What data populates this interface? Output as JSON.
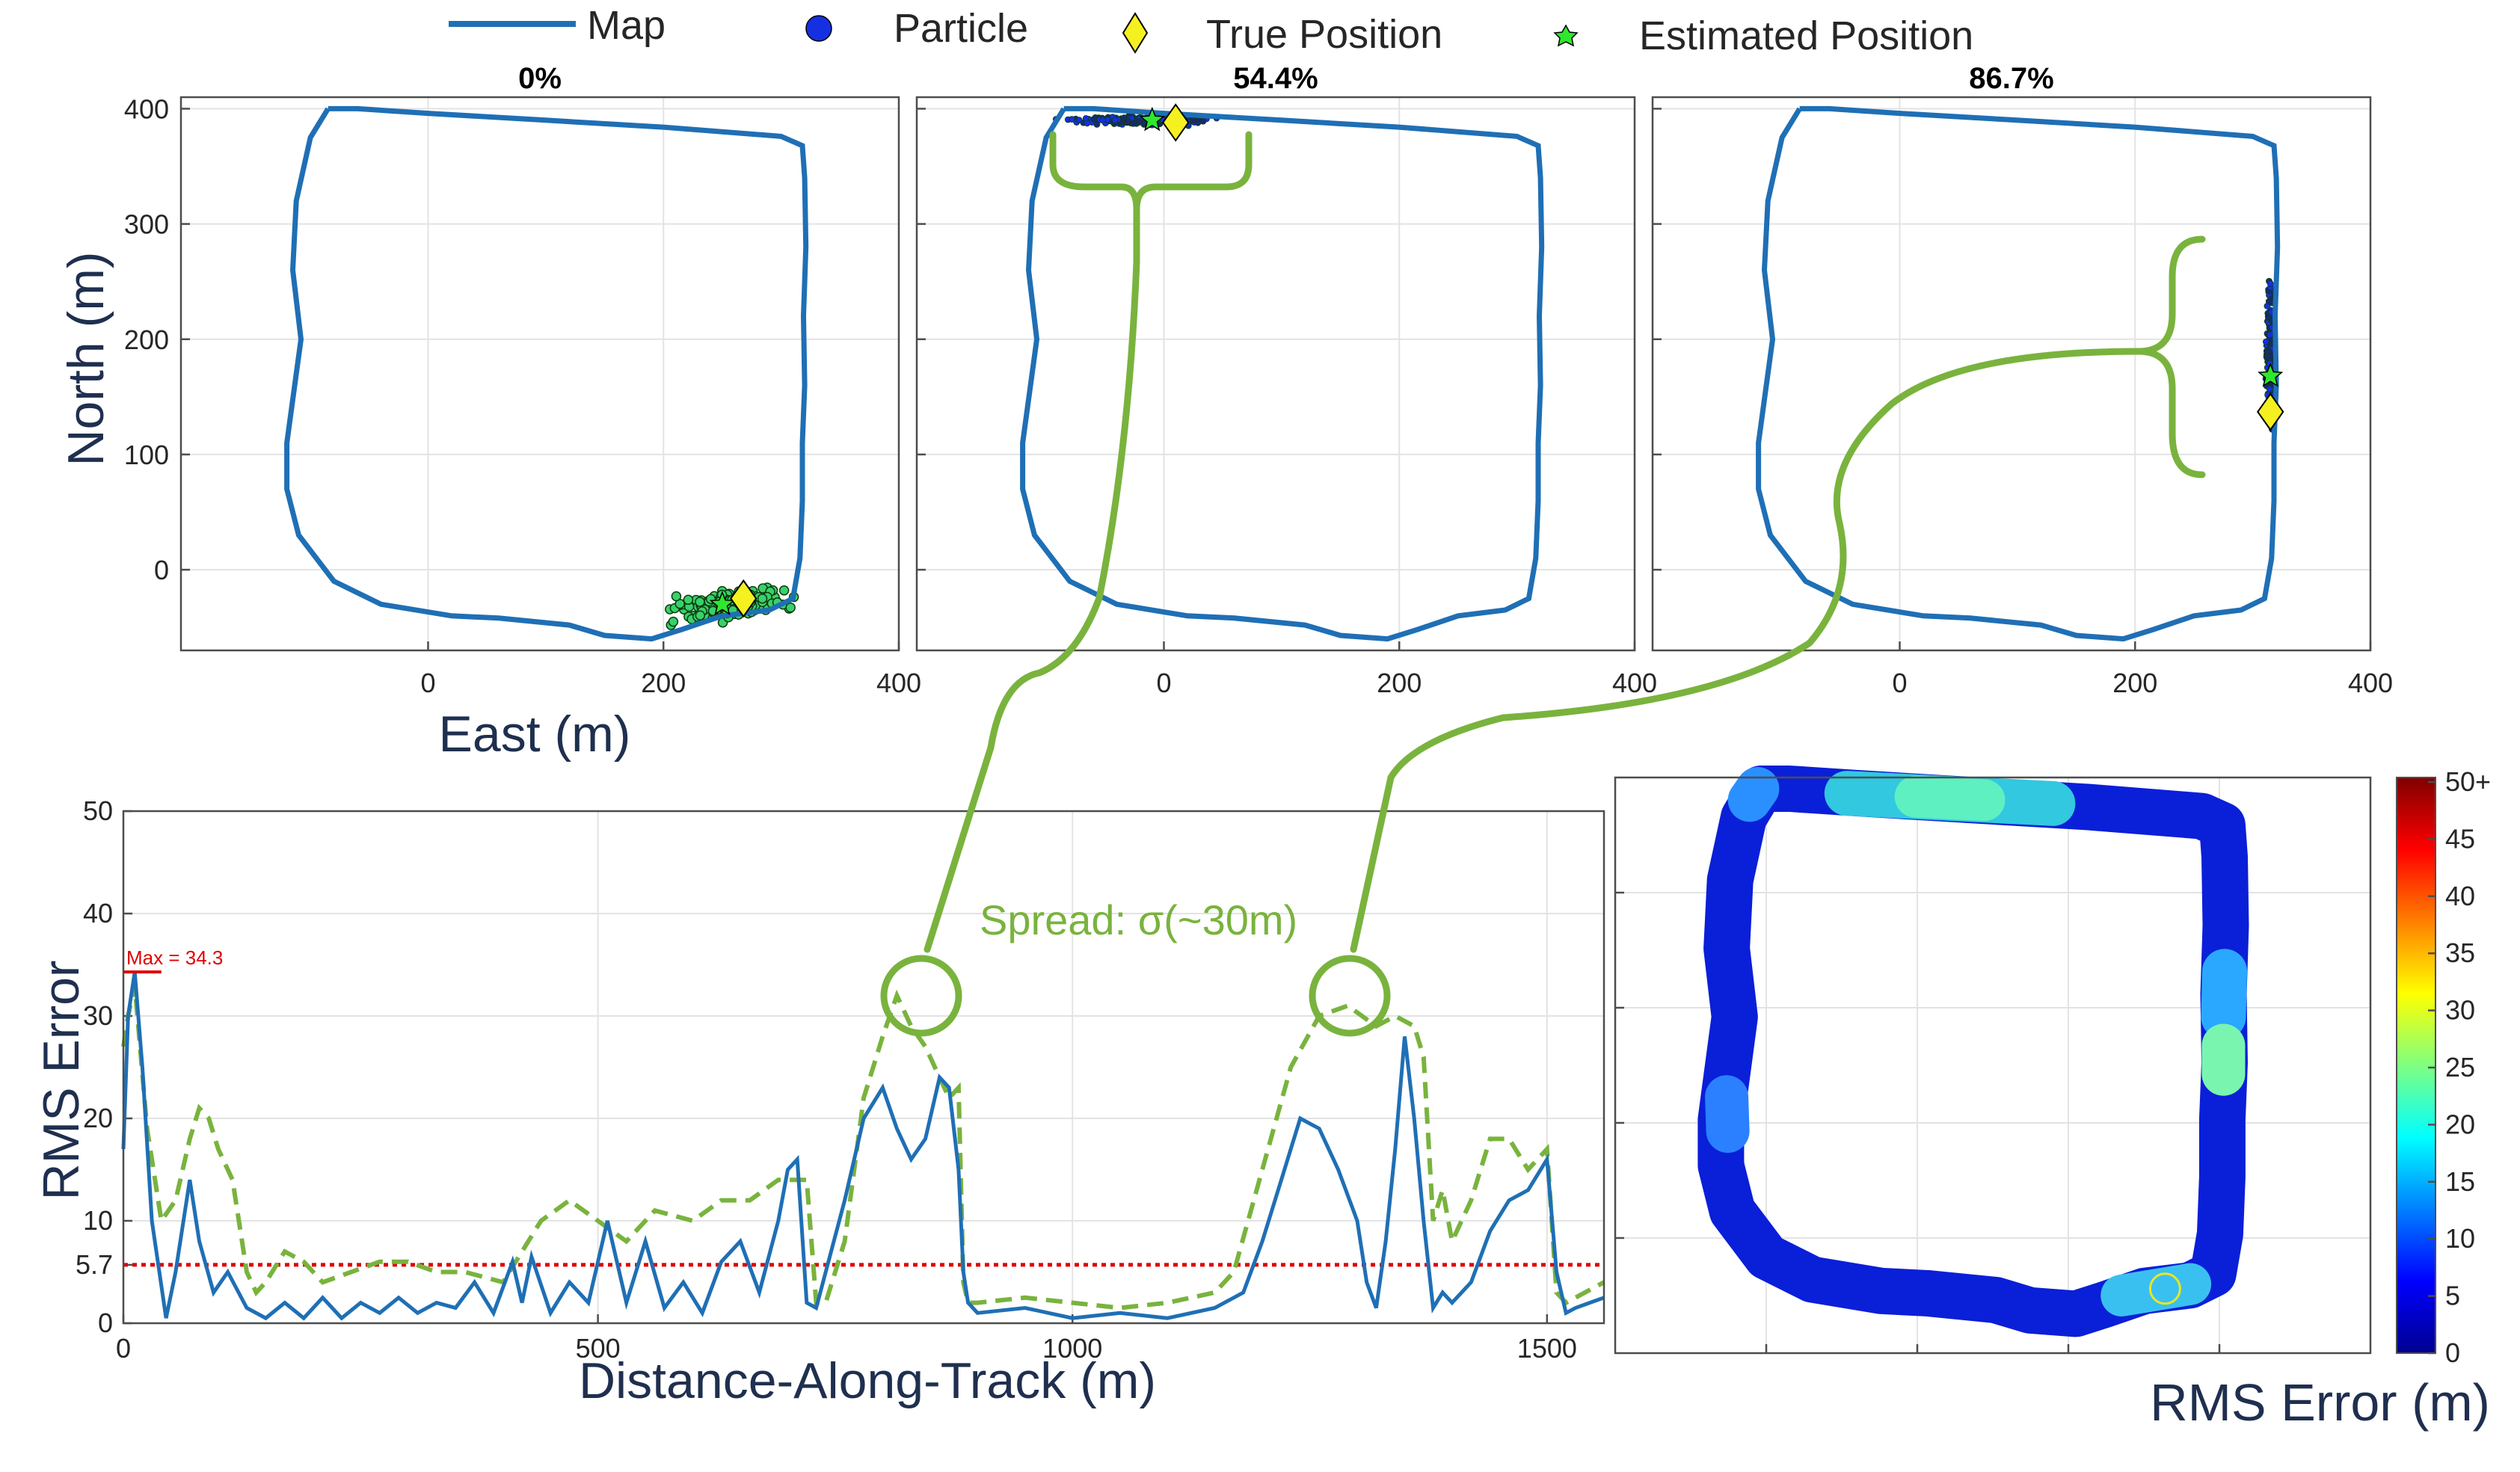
{
  "legend": {
    "items": [
      {
        "label": "Map",
        "marker": "line",
        "color": "#1f6fb5"
      },
      {
        "label": "Particle",
        "marker": "circle",
        "color": "#1530e0"
      },
      {
        "label": "True Position",
        "marker": "diamond",
        "color": "#f5f020"
      },
      {
        "label": "Estimated Position",
        "marker": "star",
        "color": "#2ee82e"
      }
    ]
  },
  "colors": {
    "map": "#1f6fb5",
    "rms_line": "#1f6fb5",
    "spread_line": "#79b33d",
    "threshold": "#e00000",
    "annotation": "#79b33d"
  },
  "annotation": {
    "spread_label": "Spread:  σ(~30m)"
  },
  "colorbar": {
    "label": "RMS Error (m)",
    "ticks": [
      "0",
      "5",
      "10",
      "15",
      "20",
      "25",
      "30",
      "35",
      "40",
      "45",
      "50+"
    ],
    "colormap": "jet"
  },
  "chart_data": [
    {
      "type": "line",
      "title": "0%",
      "xlabel": "East (m)",
      "ylabel": "North (m)",
      "xlim": [
        -210,
        400
      ],
      "ylim": [
        -70,
        410
      ],
      "xticks": [
        "0",
        "200",
        "400"
      ],
      "yticks": [
        "0",
        "100",
        "200",
        "300",
        "400"
      ],
      "grid": true,
      "particles_center": [
        260,
        -30
      ],
      "true_position": [
        268,
        -25
      ],
      "estimated_position": [
        250,
        -30
      ]
    },
    {
      "type": "line",
      "title": "54.4%",
      "xlabel": "",
      "ylabel": "",
      "xlim": [
        -210,
        400
      ],
      "ylim": [
        -70,
        410
      ],
      "xticks": [
        "0",
        "200",
        "400"
      ],
      "grid": true,
      "particles_center": [
        -20,
        390
      ],
      "true_position": [
        10,
        388
      ],
      "estimated_position": [
        -10,
        390
      ]
    },
    {
      "type": "line",
      "title": "86.7%",
      "xlabel": "",
      "ylabel": "",
      "xlim": [
        -210,
        400
      ],
      "ylim": [
        -70,
        410
      ],
      "xticks": [
        "0",
        "200",
        "400"
      ],
      "grid": true,
      "particles_center": [
        315,
        190
      ],
      "true_position": [
        315,
        137
      ],
      "estimated_position": [
        315,
        168
      ]
    },
    {
      "type": "line",
      "title": "",
      "xlabel": "Distance-Along-Track (m)",
      "ylabel": "RMS Error",
      "xlim": [
        0,
        1560
      ],
      "ylim": [
        0,
        50
      ],
      "xticks": [
        "0",
        "500",
        "1000",
        "1500"
      ],
      "yticks": [
        "0",
        "5.7",
        "10",
        "20",
        "30",
        "40",
        "50"
      ],
      "threshold": 5.7,
      "max_label": "Max = 34.3",
      "max_value": 34.3,
      "series": [
        {
          "style": "solid",
          "x": [
            0,
            5,
            12,
            20,
            30,
            45,
            55,
            70,
            80,
            95,
            110,
            130,
            150,
            170,
            190,
            210,
            230,
            250,
            270,
            290,
            310,
            330,
            350,
            370,
            390,
            410,
            420,
            430,
            450,
            470,
            490,
            510,
            530,
            550,
            570,
            590,
            610,
            630,
            650,
            670,
            690,
            700,
            710,
            720,
            730,
            740,
            760,
            780,
            800,
            815,
            830,
            845,
            860,
            870,
            880,
            885,
            890,
            900,
            950,
            1000,
            1050,
            1100,
            1150,
            1180,
            1200,
            1220,
            1240,
            1260,
            1280,
            1300,
            1310,
            1320,
            1330,
            1340,
            1350,
            1360,
            1370,
            1380,
            1390,
            1400,
            1420,
            1440,
            1460,
            1480,
            1500,
            1510,
            1520,
            1530,
            1545,
            1560
          ],
          "values": [
            17,
            30,
            34.3,
            25,
            10,
            0.5,
            5,
            14,
            8,
            3,
            5,
            1.5,
            0.5,
            2,
            0.5,
            2.5,
            0.5,
            2,
            1,
            2.5,
            1,
            2,
            1.5,
            4,
            1,
            6,
            2,
            6.5,
            1,
            4,
            2,
            10,
            2,
            8,
            1.5,
            4,
            1,
            6,
            8,
            3,
            10,
            15,
            16,
            2,
            1.5,
            5,
            12,
            20,
            23,
            19,
            16,
            18,
            24,
            23,
            15,
            5,
            2,
            1,
            1.5,
            0.5,
            1,
            0.5,
            1.5,
            3,
            8,
            14,
            20,
            19,
            15,
            10,
            4,
            1.5,
            8,
            17,
            28,
            20,
            10,
            1.5,
            3,
            2,
            4,
            9,
            12,
            13,
            16,
            5,
            1,
            1.5,
            2,
            2.5
          ]
        },
        {
          "style": "dashed",
          "x": [
            0,
            5,
            12,
            25,
            40,
            55,
            70,
            80,
            90,
            100,
            115,
            130,
            140,
            150,
            170,
            190,
            210,
            240,
            270,
            300,
            330,
            360,
            400,
            420,
            440,
            470,
            500,
            530,
            560,
            600,
            630,
            660,
            690,
            720,
            730,
            740,
            760,
            780,
            800,
            815,
            830,
            845,
            860,
            870,
            880,
            885,
            890,
            900,
            950,
            1000,
            1050,
            1100,
            1150,
            1170,
            1200,
            1230,
            1260,
            1290,
            1320,
            1340,
            1360,
            1370,
            1380,
            1390,
            1400,
            1420,
            1440,
            1460,
            1480,
            1500,
            1510,
            1520,
            1540,
            1560
          ],
          "values": [
            27,
            30,
            33,
            19,
            10,
            12,
            18,
            21,
            20,
            17,
            14,
            5,
            3,
            4,
            7,
            6,
            4,
            5,
            6,
            6,
            5,
            5,
            4,
            7,
            10,
            12,
            10,
            8,
            11,
            10,
            12,
            12,
            14,
            14,
            2,
            2,
            8,
            22,
            28,
            32,
            29,
            27,
            24,
            22,
            23,
            4,
            2,
            2,
            2.5,
            2,
            1.5,
            2,
            3,
            5,
            15,
            25,
            30,
            31,
            29,
            30,
            29,
            26,
            10,
            13,
            8,
            12,
            18,
            18,
            15,
            17,
            3,
            2,
            3,
            4
          ]
        }
      ]
    },
    {
      "type": "heatmap",
      "title": "",
      "xlabel": "",
      "ylabel": "",
      "grid": true
    }
  ]
}
